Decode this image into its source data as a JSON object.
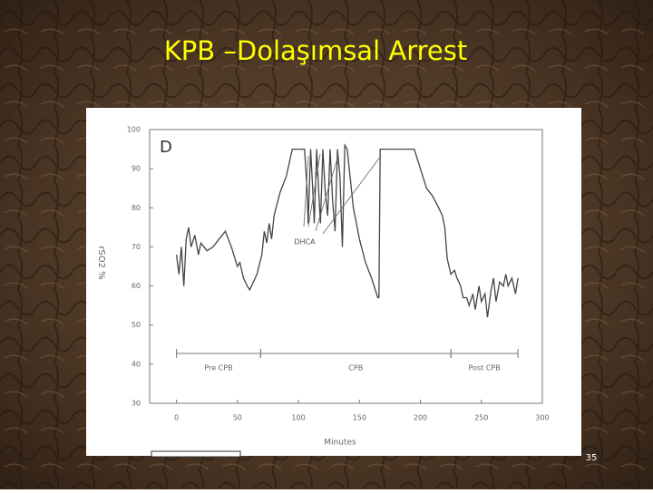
{
  "slide": {
    "title": "KPB –Dolaşımsal Arrest",
    "page_number": "35"
  },
  "chart_data": {
    "type": "line",
    "panel_label": "D",
    "x_label": "Minutes",
    "y_label": "rSO2 %",
    "annotation": "DHCA",
    "phases": [
      {
        "label": "Pre CPB",
        "start": 0,
        "end": 69
      },
      {
        "label": "CPB",
        "start": 69,
        "end": 225
      },
      {
        "label": "Post CPB",
        "start": 225,
        "end": 280
      }
    ],
    "x": [
      0,
      2,
      4,
      6,
      8,
      10,
      12,
      15,
      18,
      20,
      25,
      30,
      35,
      40,
      45,
      48,
      50,
      52,
      55,
      58,
      60,
      63,
      66,
      70,
      72,
      74,
      76,
      78,
      80,
      85,
      90,
      95,
      100,
      105,
      107,
      108,
      110,
      112,
      113,
      115,
      117,
      118,
      120,
      122,
      124,
      126,
      128,
      130,
      132,
      134,
      136,
      138,
      140,
      145,
      150,
      155,
      160,
      165,
      166,
      167,
      170,
      195,
      200,
      205,
      210,
      215,
      218,
      220,
      222,
      225,
      228,
      230,
      233,
      235,
      238,
      240,
      243,
      245,
      248,
      250,
      253,
      255,
      258,
      260,
      262,
      265,
      268,
      270,
      272,
      275,
      278,
      280
    ],
    "values": [
      68,
      63,
      70,
      60,
      72,
      75,
      70,
      73,
      68,
      71,
      69,
      70,
      72,
      74,
      70,
      67,
      65,
      66,
      62,
      60,
      59,
      61,
      63,
      68,
      74,
      71,
      76,
      72,
      78,
      84,
      88,
      95,
      95,
      95,
      85,
      76,
      95,
      83,
      76,
      95,
      82,
      76,
      95,
      84,
      78,
      95,
      82,
      74,
      95,
      88,
      70,
      96,
      95,
      80,
      72,
      66,
      62,
      57,
      57,
      95,
      95,
      95,
      90,
      85,
      83,
      80,
      78,
      75,
      67,
      63,
      64,
      62,
      60,
      57,
      57,
      55,
      58,
      54,
      60,
      56,
      58,
      52,
      59,
      62,
      56,
      61,
      60,
      63,
      60,
      62,
      58,
      62
    ],
    "color": "#444444",
    "xlim": [
      -22,
      300
    ],
    "ylim": [
      30,
      100
    ],
    "xticks": [
      0,
      50,
      100,
      150,
      200,
      250,
      300
    ],
    "yticks": [
      30,
      40,
      50,
      60,
      70,
      80,
      90,
      100
    ]
  }
}
